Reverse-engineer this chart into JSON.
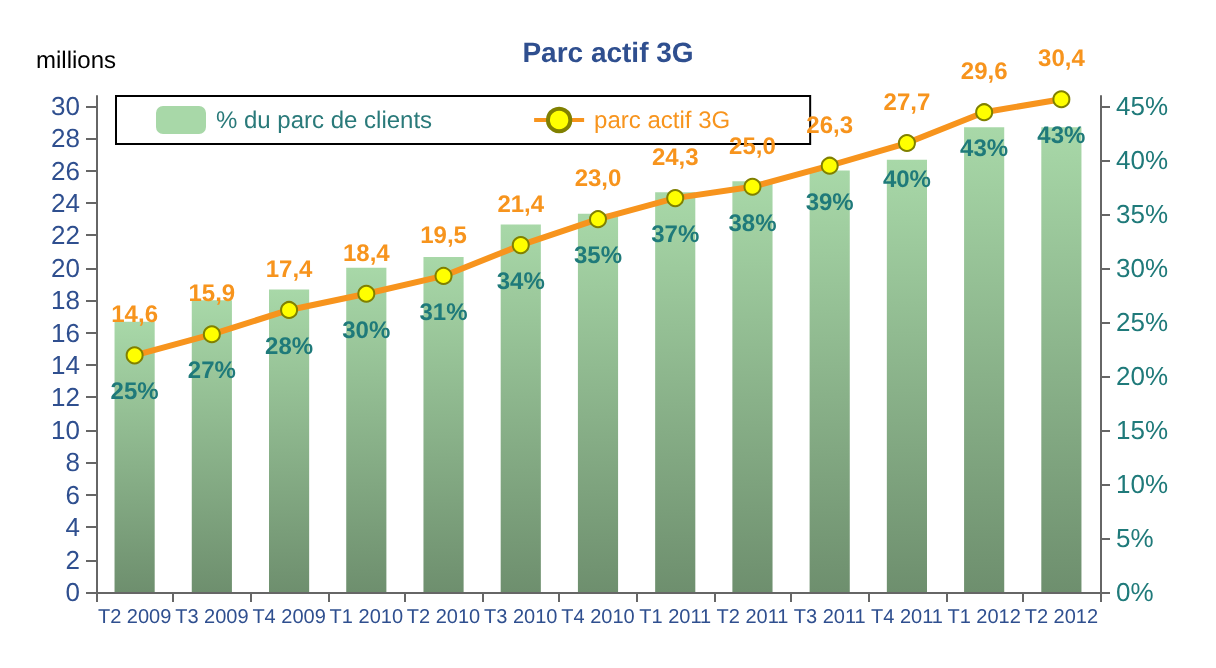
{
  "chart_data": {
    "type": "bar",
    "title": "Parc actif 3G",
    "ylabel": "millions",
    "categories": [
      "T2 2009",
      "T3 2009",
      "T4 2009",
      "T1 2010",
      "T2 2010",
      "T3 2010",
      "T4 2010",
      "T1 2011",
      "T2 2011",
      "T3 2011",
      "T4 2011",
      "T1 2012",
      "T2 2012"
    ],
    "series": [
      {
        "name": "% du parc de clients",
        "axis": "y2",
        "color": "#a8d8a8",
        "values": [
          25,
          27,
          28,
          30,
          31,
          34,
          35,
          37,
          38,
          39,
          40,
          43,
          43
        ],
        "value_labels": [
          "25%",
          "27%",
          "28%",
          "30%",
          "31%",
          "34%",
          "35%",
          "37%",
          "38%",
          "39%",
          "40%",
          "43%",
          "43%"
        ]
      },
      {
        "name": "parc actif 3G",
        "type": "line",
        "color": "#f7941d",
        "values": [
          14.6,
          15.9,
          17.4,
          18.4,
          19.5,
          21.4,
          23.0,
          24.3,
          25.0,
          26.3,
          27.7,
          29.6,
          30.4
        ],
        "value_labels": [
          "14,6",
          "15,9",
          "17,4",
          "18,4",
          "19,5",
          "21,4",
          "23,0",
          "24,3",
          "25,0",
          "26,3",
          "27,7",
          "29,6",
          "30,4"
        ]
      }
    ],
    "ylim": [
      0,
      30.6
    ],
    "yticks": [
      0,
      2,
      4,
      6,
      8,
      10,
      12,
      14,
      16,
      18,
      20,
      22,
      24,
      26,
      28,
      30
    ],
    "y2lim": [
      0,
      45.9
    ],
    "y2ticks": [
      {
        "value": 0,
        "label": "0%"
      },
      {
        "value": 5,
        "label": "5%"
      },
      {
        "value": 10,
        "label": "10%"
      },
      {
        "value": 15,
        "label": "15%"
      },
      {
        "value": 20,
        "label": "20%"
      },
      {
        "value": 25,
        "label": "25%"
      },
      {
        "value": 30,
        "label": "30%"
      },
      {
        "value": 35,
        "label": "35%"
      },
      {
        "value": 40,
        "label": "40%"
      },
      {
        "value": 45,
        "label": "45%"
      }
    ],
    "legend": "top left",
    "marker": "circle",
    "grid": false
  }
}
